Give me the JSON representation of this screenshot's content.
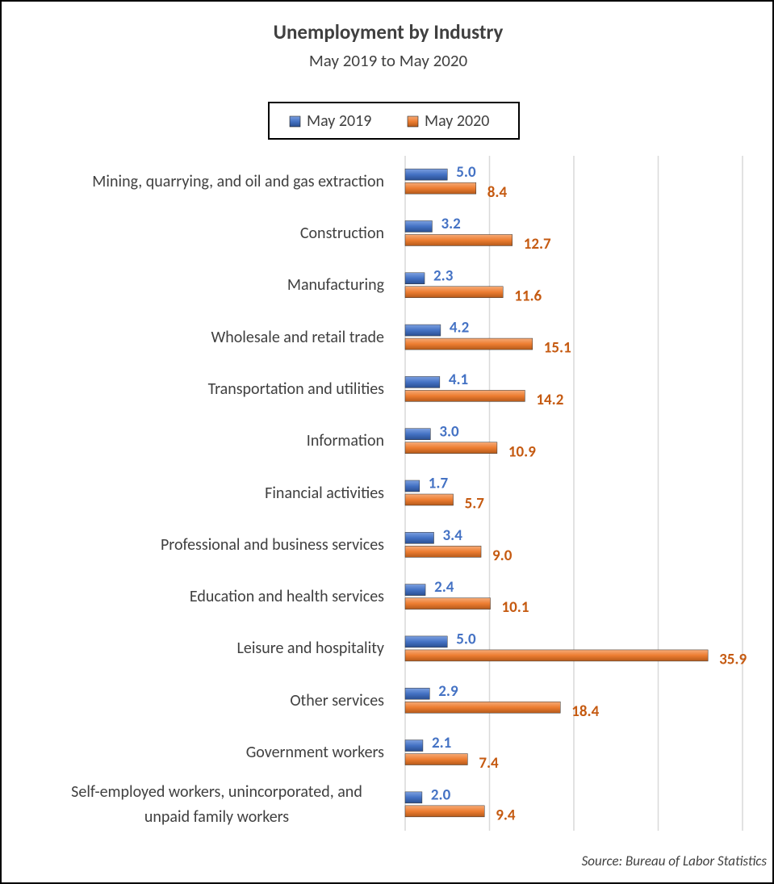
{
  "chart_data": {
    "type": "bar",
    "orientation": "horizontal",
    "title": "Unemployment by Industry",
    "subtitle": "May 2019 to May 2020",
    "source": "Source: Bureau of Labor Statistics",
    "categories": [
      "Mining, quarrying, and oil and gas extraction",
      "Construction",
      "Manufacturing",
      "Wholesale and retail trade",
      "Transportation and utilities",
      "Information",
      "Financial activities",
      "Professional and business services",
      "Education and health services",
      "Leisure and hospitality",
      "Other services",
      "Government workers",
      "Self-employed workers, unincorporated, and unpaid family workers"
    ],
    "series": [
      {
        "name": "May 2019",
        "color": "#4472c4",
        "label_color": "#4472c4",
        "values": [
          5.0,
          3.2,
          2.3,
          4.2,
          4.1,
          3.0,
          1.7,
          3.4,
          2.4,
          5.0,
          2.9,
          2.1,
          2.0
        ],
        "value_labels": [
          "5.0",
          "3.2",
          "2.3",
          "4.2",
          "4.1",
          "3.0",
          "1.7",
          "3.4",
          "2.4",
          "5.0",
          "2.9",
          "2.1",
          "2.0"
        ]
      },
      {
        "name": "May 2020",
        "color": "#ed7d31",
        "label_color": "#c55a11",
        "values": [
          8.4,
          12.7,
          11.6,
          15.1,
          14.2,
          10.9,
          5.7,
          9.0,
          10.1,
          35.9,
          18.4,
          7.4,
          9.4
        ],
        "value_labels": [
          "8.4",
          "12.7",
          "11.6",
          "15.1",
          "14.2",
          "10.9",
          "5.7",
          "9.0",
          "10.1",
          "35.9",
          "18.4",
          "7.4",
          "9.4"
        ]
      }
    ],
    "xlim": [
      0,
      40
    ],
    "xticks": [
      0,
      10,
      20,
      30,
      40
    ],
    "grid": true,
    "legend": "top"
  }
}
